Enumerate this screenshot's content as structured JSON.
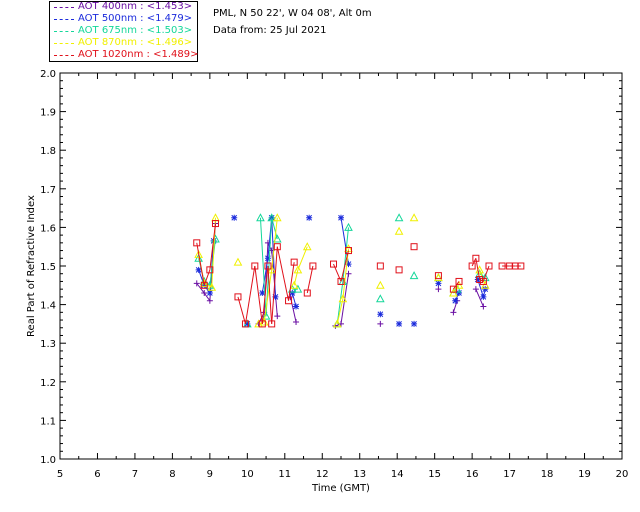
{
  "header": {
    "site": "PML, N 50 22', W 04 08', Alt 0m",
    "date": "Data from: 25 Jul 2021"
  },
  "legend": [
    {
      "label": "AOT  400nm : <1.453>",
      "color": "#6a0fa3"
    },
    {
      "label": "AOT  500nm : <1.479>",
      "color": "#1b2bdc"
    },
    {
      "label": "AOT  675nm : <1.503>",
      "color": "#14d79a"
    },
    {
      "label": "AOT  870nm : <1.496>",
      "color": "#f0f000"
    },
    {
      "label": "AOT 1020nm : <1.489>",
      "color": "#e0101a"
    }
  ],
  "chart_data": {
    "type": "scatter",
    "xlabel": "Time (GMT)",
    "ylabel": "Real Part of Refractive Index",
    "xlim": [
      5,
      20
    ],
    "ylim": [
      1.0,
      2.0
    ],
    "xticks": [
      "5",
      "6",
      "7",
      "8",
      "9",
      "10",
      "11",
      "12",
      "13",
      "14",
      "15",
      "16",
      "17",
      "18",
      "19",
      "20"
    ],
    "yticks": [
      "1.0",
      "1.1",
      "1.2",
      "1.3",
      "1.4",
      "1.5",
      "1.6",
      "1.7",
      "1.8",
      "1.9",
      "2.0"
    ],
    "grid": false,
    "legend_position": "top-left, outside plot",
    "series": [
      {
        "name": "AOT  400nm : <1.453>",
        "color": "#6a0fa3",
        "marker": "plus",
        "x": [
          8.65,
          8.85,
          9.0,
          9.15,
          10.3,
          10.45,
          10.55,
          10.65,
          10.8,
          11.15,
          11.3,
          12.35,
          12.5,
          12.7,
          13.55,
          15.1,
          15.5,
          15.6,
          16.1,
          16.3
        ],
        "y": [
          1.455,
          1.43,
          1.41,
          1.61,
          1.35,
          1.38,
          1.56,
          1.54,
          1.37,
          1.42,
          1.355,
          1.345,
          1.35,
          1.48,
          1.35,
          1.44,
          1.38,
          1.41,
          1.44,
          1.395
        ]
      },
      {
        "name": "AOT  500nm : <1.479>",
        "color": "#1b2bdc",
        "marker": "asterisk",
        "x": [
          8.7,
          8.85,
          9.0,
          9.1,
          9.65,
          10.0,
          10.4,
          10.55,
          10.65,
          10.75,
          11.2,
          11.3,
          11.65,
          12.5,
          12.7,
          13.55,
          14.05,
          14.45,
          15.1,
          15.55,
          15.65,
          16.15,
          16.3,
          16.35
        ],
        "y": [
          1.49,
          1.45,
          1.43,
          1.565,
          1.625,
          1.35,
          1.43,
          1.52,
          1.625,
          1.42,
          1.43,
          1.395,
          1.625,
          1.625,
          1.505,
          1.375,
          1.35,
          1.35,
          1.455,
          1.41,
          1.43,
          1.465,
          1.42,
          1.44
        ]
      },
      {
        "name": "AOT  675nm : <1.503>",
        "color": "#14d79a",
        "marker": "triangle",
        "x": [
          8.7,
          8.85,
          9.0,
          9.15,
          10.0,
          10.35,
          10.5,
          10.65,
          10.8,
          11.2,
          11.35,
          12.4,
          12.55,
          12.7,
          13.55,
          14.05,
          14.45,
          15.1,
          15.5,
          15.6,
          16.2,
          16.35
        ],
        "y": [
          1.52,
          1.46,
          1.45,
          1.57,
          1.35,
          1.625,
          1.37,
          1.625,
          1.57,
          1.44,
          1.44,
          1.35,
          1.46,
          1.6,
          1.415,
          1.625,
          1.475,
          1.47,
          1.43,
          1.44,
          1.48,
          1.47
        ]
      },
      {
        "name": "AOT  870nm : <1.496>",
        "color": "#f0f000",
        "marker": "triangle",
        "x": [
          8.7,
          8.85,
          9.05,
          9.15,
          9.75,
          10.3,
          10.45,
          10.65,
          10.8,
          11.25,
          11.35,
          11.6,
          12.4,
          12.55,
          12.7,
          13.55,
          14.05,
          14.45,
          15.1,
          15.5,
          15.65,
          16.2,
          16.35
        ],
        "y": [
          1.53,
          1.455,
          1.445,
          1.625,
          1.51,
          1.35,
          1.355,
          1.49,
          1.625,
          1.45,
          1.49,
          1.55,
          1.35,
          1.415,
          1.545,
          1.45,
          1.59,
          1.625,
          1.47,
          1.43,
          1.45,
          1.49,
          1.45
        ]
      },
      {
        "name": "AOT 1020nm : <1.489>",
        "color": "#e0101a",
        "marker": "square",
        "x": [
          8.65,
          8.85,
          9.0,
          9.15,
          9.75,
          9.95,
          10.2,
          10.4,
          10.55,
          10.65,
          10.8,
          11.1,
          11.25,
          11.6,
          11.75,
          12.3,
          12.5,
          12.7,
          13.55,
          14.05,
          14.45,
          15.1,
          15.5,
          15.65,
          16.0,
          16.1,
          16.2,
          16.3,
          16.45,
          16.8,
          17.0,
          17.15,
          17.3
        ],
        "y": [
          1.56,
          1.45,
          1.49,
          1.61,
          1.42,
          1.35,
          1.5,
          1.35,
          1.5,
          1.35,
          1.55,
          1.41,
          1.51,
          1.43,
          1.5,
          1.505,
          1.46,
          1.54,
          1.5,
          1.49,
          1.55,
          1.475,
          1.44,
          1.46,
          1.5,
          1.52,
          1.465,
          1.46,
          1.5,
          1.5,
          1.5,
          1.5,
          1.5
        ]
      }
    ]
  }
}
